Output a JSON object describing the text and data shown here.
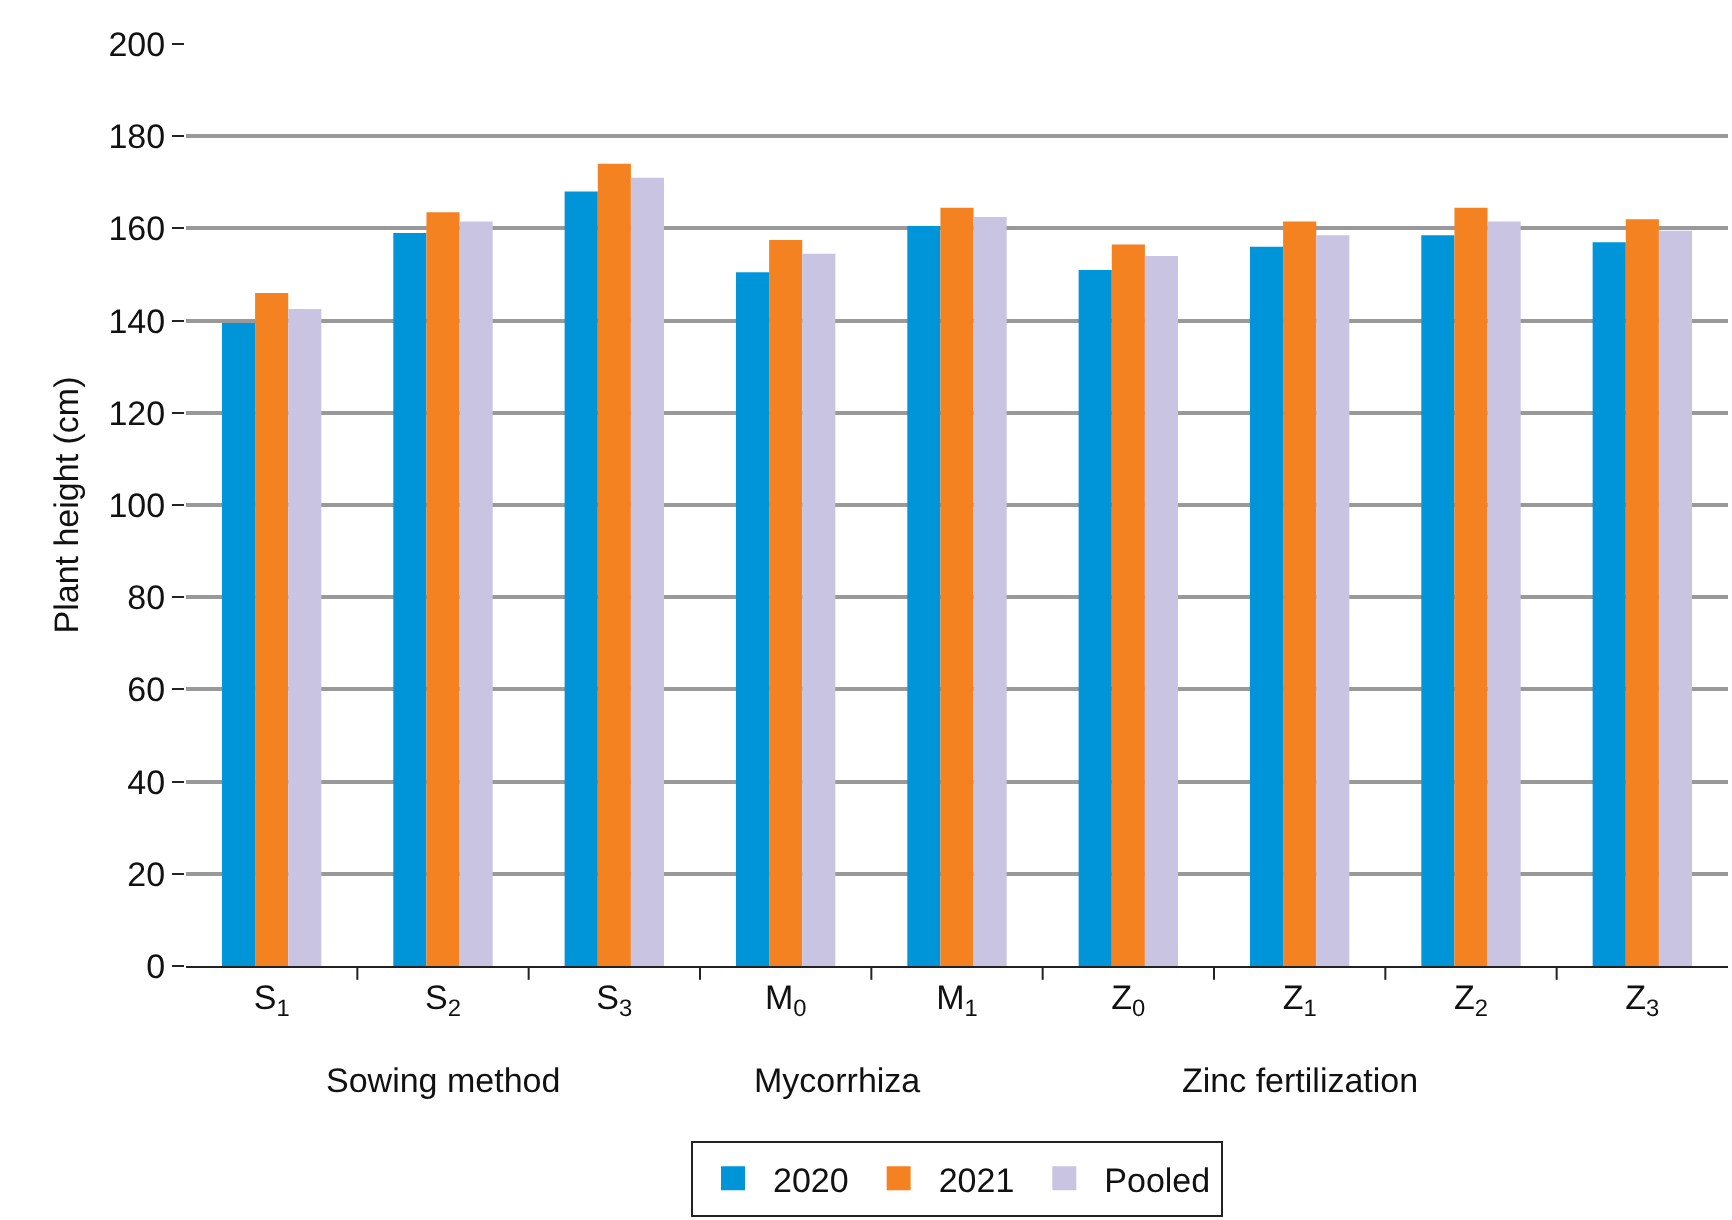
{
  "chart_data": {
    "type": "bar",
    "ylabel": "Plant height (cm)",
    "categories": [
      "S$_{1}$",
      "S$_{2}$",
      "S$_{3}$",
      "M$_{0}$",
      "M$_{1}$",
      "Z$_{0}$",
      "Z$_{1}$",
      "Z$_{2}$",
      "Z$_{3}$"
    ],
    "series": [
      {
        "name": "2020",
        "color": "#0095d9",
        "values": [
          139.5,
          159,
          168,
          150.5,
          160.5,
          151,
          156,
          158.5,
          157
        ]
      },
      {
        "name": "2021",
        "color": "#f58220",
        "values": [
          146,
          163.5,
          174,
          157.5,
          164.5,
          156.5,
          161.5,
          164.5,
          162
        ]
      },
      {
        "name": "Pooled",
        "color": "#c8c4e2",
        "values": [
          142.5,
          161.5,
          171,
          154.5,
          162.5,
          154,
          158.5,
          161.5,
          159.5
        ]
      }
    ],
    "ylim": [
      0,
      200
    ],
    "yticks": [
      0,
      20,
      40,
      60,
      80,
      100,
      120,
      140,
      160,
      180,
      200
    ],
    "grid": "y",
    "legend": "bottom",
    "annotations": [
      "Sowing method",
      "Mycorrhiza",
      "Zinc fertilization"
    ]
  }
}
